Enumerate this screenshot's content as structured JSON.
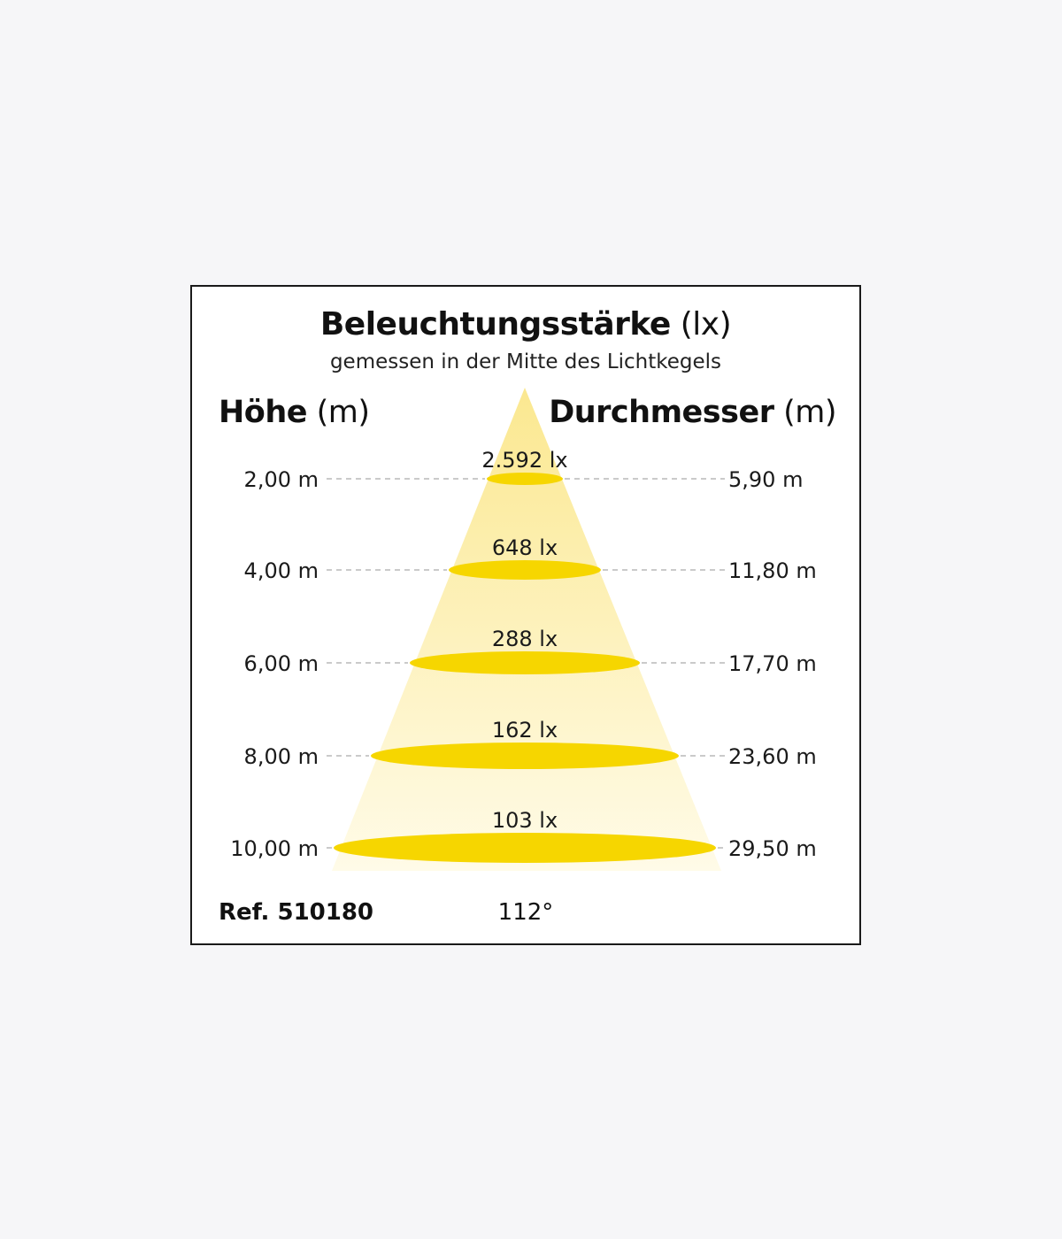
{
  "title": {
    "main_bold": "Beleuchtungsstärke",
    "main_unit": "(lx)",
    "subtitle": "gemessen in der Mitte des Lichtkegels"
  },
  "headers": {
    "height_bold": "Höhe",
    "height_unit": "(m)",
    "diameter_bold": "Durchmesser",
    "diameter_unit": "(m)"
  },
  "levels": [
    {
      "height": "2,00 m",
      "lux": "2.592 lx",
      "diameter": "5,90 m"
    },
    {
      "height": "4,00 m",
      "lux": "648 lx",
      "diameter": "11,80 m"
    },
    {
      "height": "6,00 m",
      "lux": "288 lx",
      "diameter": "17,70 m"
    },
    {
      "height": "8,00 m",
      "lux": "162 lx",
      "diameter": "23,60 m"
    },
    {
      "height": "10,00 m",
      "lux": "103 lx",
      "diameter": "29,50 m"
    }
  ],
  "footer": {
    "ref": "Ref. 510180",
    "angle": "112°"
  },
  "colors": {
    "ellipse": "#f6d600",
    "cone_top": "#fbe890",
    "cone_bottom": "#fffbe8",
    "guide_line": "#b8b8b8",
    "frame": "#1a1a1a",
    "background": "#f6f6f8"
  }
}
